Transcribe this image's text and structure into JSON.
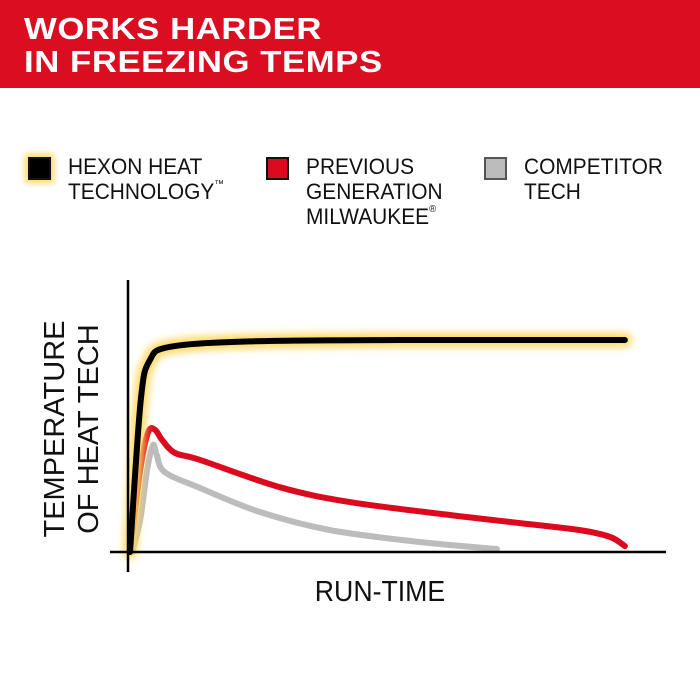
{
  "header": {
    "title_line1": "WORKS HARDER",
    "title_line2": "IN FREEZING TEMPS"
  },
  "legend": [
    {
      "line1": "HEXON HEAT",
      "line2": "TECHNOLOGY",
      "mark": "™",
      "line3": "",
      "color": "#000000",
      "glow": true
    },
    {
      "line1": "PREVIOUS",
      "line2": "GENERATION",
      "line3": "MILWAUKEE",
      "mark": "®",
      "color": "#db0a1e",
      "glow": false
    },
    {
      "line1": "COMPETITOR",
      "line2": "TECH",
      "line3": "",
      "mark": "",
      "color": "#bcbcbc",
      "glow": false
    }
  ],
  "colors": {
    "brand_red": "#da0d21",
    "glow": "#ffd75e"
  },
  "chart_data": {
    "type": "line",
    "title": "",
    "xlabel": "RUN-TIME",
    "ylabel_line1": "TEMPERATURE",
    "ylabel_line2": "OF HEAT TECH",
    "xlim": [
      0,
      100
    ],
    "ylim": [
      0,
      100
    ],
    "ticks": "none",
    "grid": false,
    "legend": "top",
    "series": [
      {
        "name": "HEXON HEAT TECHNOLOGY™",
        "color": "#000000",
        "glow": true,
        "x": [
          0,
          2,
          3.7,
          7.5,
          22.4,
          50.5,
          92.5
        ],
        "y": [
          0,
          56,
          71,
          76,
          78,
          78.5,
          78.5
        ]
      },
      {
        "name": "PREVIOUS GENERATION MILWAUKEE®",
        "color": "#db0a1e",
        "x": [
          0,
          1.9,
          3.4,
          4.7,
          6,
          8.4,
          13.1,
          28,
          41.1,
          59.8,
          72.9,
          84.1,
          89.7,
          92.5
        ],
        "y": [
          0,
          30.4,
          44.4,
          45.2,
          41.5,
          36.7,
          34.1,
          24,
          18.5,
          13.7,
          10.7,
          8.1,
          5.6,
          2.2
        ]
      },
      {
        "name": "COMPETITOR TECH",
        "color": "#bcbcbc",
        "x": [
          0.4,
          1.9,
          3.2,
          4.3,
          5,
          6.5,
          13.1,
          24.3,
          37.4,
          54.2,
          68.6
        ],
        "y": [
          0,
          11.9,
          30.4,
          39.6,
          35.9,
          29.6,
          23.7,
          14.8,
          8.1,
          3.7,
          1.1
        ]
      }
    ]
  }
}
